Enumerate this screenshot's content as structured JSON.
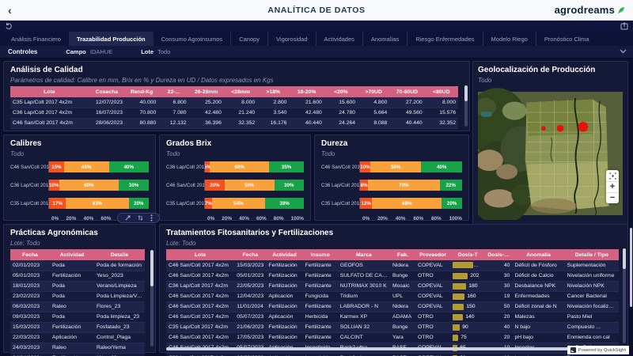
{
  "header": {
    "title": "ANALÍTICA DE DATOS",
    "logo_text": "agrodreams",
    "back_glyph": "‹"
  },
  "tabs": [
    {
      "label": "Análisis Financiero",
      "active": false
    },
    {
      "label": "Trazabilidad Producción",
      "active": true
    },
    {
      "label": "Consumo Agroinsumos",
      "active": false
    },
    {
      "label": "Canopy",
      "active": false
    },
    {
      "label": "Vigorosidad",
      "active": false
    },
    {
      "label": "Actividades",
      "active": false
    },
    {
      "label": "Anomalías",
      "active": false
    },
    {
      "label": "Riesgo Enfermedades",
      "active": false
    },
    {
      "label": "Modelo Riego",
      "active": false
    },
    {
      "label": "Pronóstico Clima",
      "active": false
    }
  ],
  "controls": {
    "title": "Controles",
    "campo_label": "Campo",
    "campo_value": "IDAHUE",
    "lote_label": "Lote",
    "lote_value": "Todo"
  },
  "quality": {
    "title": "Análisis de Calidad",
    "subtitle": "Parámetros de calidad: Calibre en mm, Brix en % y Dureza en UD / Datos expresados en Kgs",
    "columns": [
      "Lote",
      "Cosecha",
      "Rend-Kg",
      "22-...",
      "26-28mm",
      "<28mm",
      ">18%",
      "18-20%",
      "<20%",
      ">70UD",
      "70-80UD",
      "<80UD"
    ],
    "rows": [
      [
        "C35 Lap/Colt 2017 4x2m",
        "12/07/2023",
        "40.000",
        "6.800",
        "25.200",
        "8.000",
        "2.800",
        "21.600",
        "15.600",
        "4.800",
        "27.200",
        "8.000"
      ],
      [
        "C36 Lap/Colt 2017 4x2m",
        "16/07/2023",
        "70.800",
        "7.080",
        "42.480",
        "21.240",
        "3.540",
        "42.480",
        "24.780",
        "5.664",
        "49.560",
        "15.576"
      ],
      [
        "C46 San/Colt 2017 4x2m",
        "28/06/2023",
        "80.880",
        "12.132",
        "36.396",
        "32.352",
        "16.176",
        "40.440",
        "24.264",
        "8.088",
        "40.440",
        "32.352"
      ]
    ]
  },
  "chart_data": [
    {
      "type": "bar",
      "orientation": "horizontal",
      "stacked": true,
      "title": "Calibres",
      "subtitle": "Todo",
      "categories": [
        "C46 San/Colt 201...",
        "C36 Lap/Colt 201...",
        "C35 Lap/Colt 201..."
      ],
      "series": [
        {
          "name": "bajo",
          "color": "#f4511e",
          "values": [
            15,
            10,
            17
          ]
        },
        {
          "name": "medio",
          "color": "#f9a13a",
          "values": [
            45,
            60,
            63
          ]
        },
        {
          "name": "alto",
          "color": "#18a34a",
          "values": [
            40,
            30,
            20
          ]
        }
      ],
      "xticks": [
        "0%",
        "20%",
        "40%",
        "60%",
        "80%",
        "100%"
      ],
      "xlim": [
        0,
        100
      ]
    },
    {
      "type": "bar",
      "orientation": "horizontal",
      "stacked": true,
      "title": "Grados Brix",
      "subtitle": "Todo",
      "categories": [
        "C36 Lap/Colt 201...",
        "C46 San/Colt 201...",
        "C35 Lap/Colt 201..."
      ],
      "series": [
        {
          "name": "bajo",
          "color": "#f4511e",
          "values": [
            5,
            20,
            7
          ]
        },
        {
          "name": "medio",
          "color": "#f9a13a",
          "values": [
            60,
            50,
            54
          ]
        },
        {
          "name": "alto",
          "color": "#18a34a",
          "values": [
            35,
            30,
            39
          ]
        }
      ],
      "xticks": [
        "0%",
        "20%",
        "40%",
        "60%",
        "80%",
        "100%"
      ],
      "xlim": [
        0,
        100
      ]
    },
    {
      "type": "bar",
      "orientation": "horizontal",
      "stacked": true,
      "title": "Dureza",
      "subtitle": "Todo",
      "categories": [
        "C46 San/Colt 201...",
        "C36 Lap/Colt 201...",
        "C35 Lap/Colt 201..."
      ],
      "series": [
        {
          "name": "bajo",
          "color": "#f4511e",
          "values": [
            10,
            8,
            12
          ]
        },
        {
          "name": "medio",
          "color": "#f9a13a",
          "values": [
            50,
            70,
            68
          ]
        },
        {
          "name": "alto",
          "color": "#18a34a",
          "values": [
            40,
            22,
            20
          ]
        }
      ],
      "xticks": [
        "0%",
        "20%",
        "40%",
        "60%",
        "80%",
        "100%"
      ],
      "xlim": [
        0,
        100
      ]
    }
  ],
  "map": {
    "title": "Geolocalización de Producción",
    "subtitle": "Todo",
    "zoom_in": "+",
    "zoom_out": "−",
    "markers": [
      {
        "x": 86,
        "y": 48,
        "r": 3
      },
      {
        "x": 108,
        "y": 48,
        "r": 4.5
      },
      {
        "x": 138,
        "y": 46,
        "r": 6.5
      }
    ],
    "marker_color": "#e8120c"
  },
  "practices": {
    "title": "Prácticas Agronómicas",
    "subtitle": "Lote: Todo",
    "columns": [
      "Fecha",
      "Actividad",
      "Detalle"
    ],
    "rows": [
      [
        "02/01/2023",
        "Poda",
        "Poda de formación"
      ],
      [
        "05/01/2023",
        "Fertilización",
        "Yeso_2023"
      ],
      [
        "18/01/2023",
        "Poda",
        "Verano/Limpieza"
      ],
      [
        "23/02/2023",
        "Poda",
        "Poda Limpieza/Veran..."
      ],
      [
        "06/03/2023",
        "Raleo",
        "Flores_23"
      ],
      [
        "09/03/2023",
        "Poda",
        "Poda limpieza_23"
      ],
      [
        "15/03/2023",
        "Fertilización",
        "Fosfatado_23"
      ],
      [
        "22/03/2023",
        "Aplicación",
        "Control_Plaga"
      ],
      [
        "24/03/2023",
        "Raleo",
        "Raleo/Yema"
      ],
      [
        "04/04/2023",
        "Fertilización",
        "Nitro_23"
      ]
    ]
  },
  "treatments": {
    "title": "Tratamientos Fitosanitarios y Fertilizaciones",
    "subtitle": "Lote: Todo",
    "columns": [
      "Lote",
      "Fecha",
      "Actividad",
      "Insumo",
      "Marca",
      "Fab.",
      "Proveedor",
      "Dosis-T",
      "Dosis-Ha",
      "Anomalía",
      "Detalle / Tipo"
    ],
    "dosis_max": 270,
    "bar_color": "#b39a33",
    "rows": [
      [
        "C46 San/Colt 2017 4x2m",
        "15/03/2023",
        "Fertilización",
        "Fertilizante",
        "GEOFOS",
        "Nidera",
        "COPEVAL",
        270,
        40,
        "Déficit de Fósforo",
        "Suplementación"
      ],
      [
        "C46 San/Colt 2017 4x2m",
        "05/01/2023",
        "Fertilización",
        "Fertilizante",
        "SULFATO DE CALCIO",
        "Bunge",
        "OTRO",
        202,
        30,
        "Déficit de Calcio",
        "Nivelación uniforme"
      ],
      [
        "C36 Lap/Colt 2017 4x2m",
        "22/05/2023",
        "Fertilización",
        "Fertilizante",
        "NUTRIMAX 3010 K",
        "Mosaic",
        "COPEVAL",
        180,
        30,
        "Desbalance NPK",
        "Nivelación NPK"
      ],
      [
        "C46 San/Colt 2017 4x2m",
        "12/04/2023",
        "Aplicación",
        "Fungicida",
        "Tridium",
        "UPL",
        "COPEVAL",
        160,
        19,
        "Enfermedades",
        "Cancer Bacterial"
      ],
      [
        "C46 San/Colt 2017 4x2m",
        "11/01/2024",
        "Fertilización",
        "Fertilizante",
        "LABRADOR - N",
        "Nidera",
        "COPEVAL",
        150,
        50,
        "Déficit zonal de N",
        "Nivelación focalizada"
      ],
      [
        "C46 San/Colt 2017 4x2m",
        "05/07/2023",
        "Aplicación",
        "Herbicida",
        "Karmex XP",
        "ADAMA",
        "OTRO",
        140,
        20,
        "Malezas",
        "Pasto Miel"
      ],
      [
        "C35 Lap/Colt 2017 4x2m",
        "21/06/2023",
        "Fertilización",
        "Fertilizante",
        "SOLUAN 32",
        "Bunge",
        "OTRO",
        90,
        40,
        "N bajo",
        "Compuesto ..."
      ],
      [
        "C46 San/Colt 2017 4x2m",
        "17/05/2023",
        "Fertilización",
        "Fertilizante",
        "CALCINT",
        "Yara",
        "OTRO",
        75,
        20,
        "pH bajo",
        "Enmienda con cal"
      ],
      [
        "C46 San/Colt 2017 4x2m",
        "05/07/2023",
        "Aplicación",
        "Insecticida",
        "Rack2 ultra",
        "BASF",
        "COPEVAL",
        65,
        10,
        "Insectos",
        "Araña Roja"
      ],
      [
        "C36 Lap/Colt 2017 4x2m",
        "22/03/2023",
        "Aplicación",
        "Insecticida",
        "Rack2 ultra",
        "BASF",
        "COPEVAL",
        60,
        10,
        "Insectos",
        "Trips"
      ]
    ]
  },
  "badge": {
    "text": "Powered by QuickSight"
  },
  "colors": {
    "header_pink": "#d4617f",
    "bar_red": "#f4511e",
    "bar_orange": "#f9a13a",
    "bar_green": "#18a34a",
    "gold": "#b39a33",
    "leaf_green": "#35c759"
  }
}
